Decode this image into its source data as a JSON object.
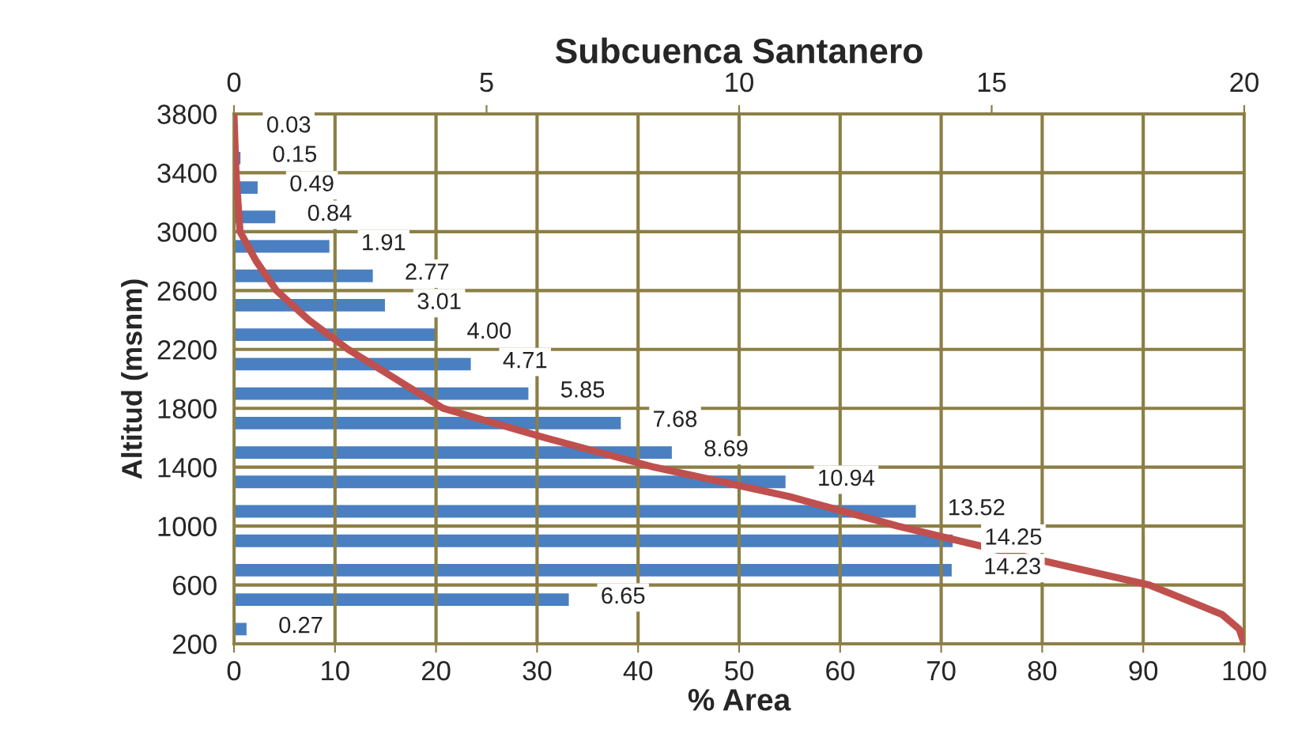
{
  "chart_data": {
    "type": "bar",
    "title": "Subcuenca Santanero",
    "xlabel": "% Area",
    "ylabel": "Altitud (msnm)",
    "orientation": "horizontal",
    "series": [
      {
        "axis": "x2",
        "color": "#4a7fc1",
        "x": [
          300,
          500,
          700,
          900,
          1100,
          1300,
          1500,
          1700,
          1900,
          2100,
          2300,
          2500,
          2700,
          2900,
          3100,
          3300,
          3500,
          3700
        ],
        "values": [
          0.27,
          6.65,
          14.23,
          14.25,
          13.52,
          10.94,
          8.69,
          7.68,
          5.85,
          4.71,
          4.0,
          3.01,
          2.77,
          1.91,
          0.84,
          0.49,
          0.15,
          0.03
        ],
        "value_labels": [
          "0.27",
          "6.65",
          "14.23",
          "14.25",
          "13.52",
          "10.94",
          "8.69",
          "7.68",
          "5.85",
          "4.71",
          "4.00",
          "3.01",
          "2.77",
          "1.91",
          "0.84",
          "0.49",
          "0.15",
          "0.03"
        ]
      },
      {
        "type": "line",
        "color": "#c0504d",
        "x": [
          3800,
          3400,
          3000,
          2800,
          2600,
          2400,
          2200,
          2000,
          1800,
          1600,
          1400,
          1200,
          1000,
          800,
          600,
          400,
          300,
          200
        ],
        "values": [
          0,
          0.2,
          0.6,
          2.2,
          4.2,
          7.4,
          11.3,
          16,
          20.7,
          30.8,
          41.6,
          55,
          65.7,
          77.8,
          90.6,
          97.8,
          99.5,
          100
        ]
      }
    ],
    "xlim": [
      0,
      100
    ],
    "xticks": [
      0,
      10,
      20,
      30,
      40,
      50,
      60,
      70,
      80,
      90,
      100
    ],
    "x2lim": [
      0,
      20
    ],
    "x2ticks": [
      0,
      5,
      10,
      15,
      20
    ],
    "ylim": [
      200,
      3800
    ],
    "yticks": [
      200,
      600,
      1000,
      1400,
      1800,
      2200,
      2600,
      3000,
      3400,
      3800
    ],
    "grid": true,
    "legend": false
  }
}
